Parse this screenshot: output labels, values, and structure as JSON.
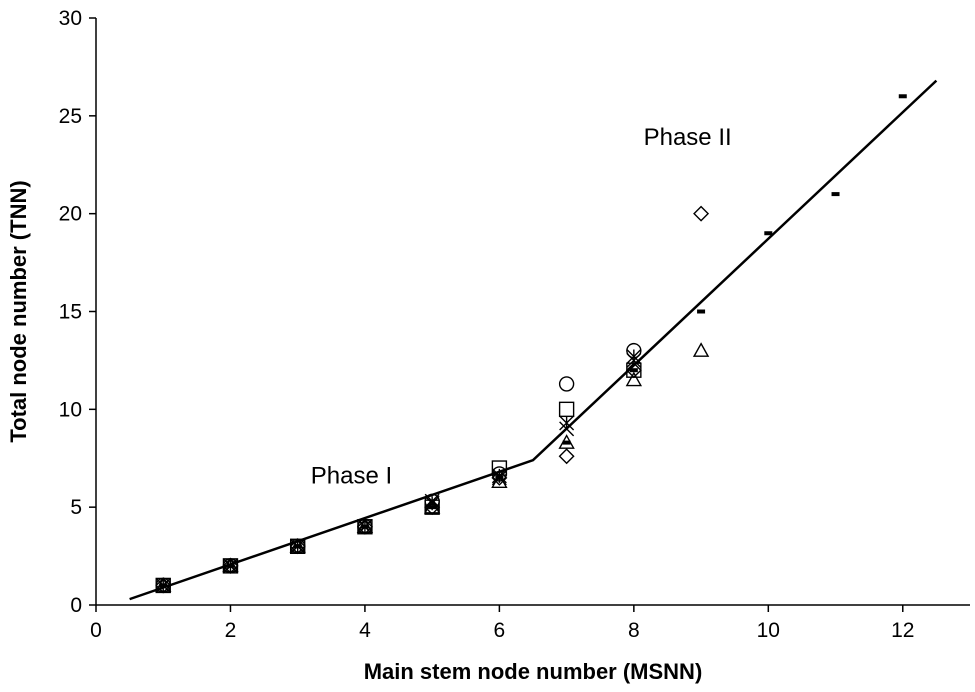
{
  "chart_data": {
    "type": "scatter",
    "title": "",
    "xlabel": "Main stem node number (MSNN)",
    "ylabel": "Total node number (TNN)",
    "xlim": [
      0,
      13
    ],
    "ylim": [
      0,
      30
    ],
    "xticks": [
      0,
      2,
      4,
      6,
      8,
      10,
      12
    ],
    "yticks": [
      0,
      5,
      10,
      15,
      20,
      25,
      30
    ],
    "grid": false,
    "legend": "none",
    "annotations": [
      {
        "text": "Phase I",
        "x": 3.8,
        "y": 6.2
      },
      {
        "text": "Phase II",
        "x": 8.8,
        "y": 23.5
      }
    ],
    "fit_line": {
      "points": [
        [
          0.5,
          0.3
        ],
        [
          6.5,
          7.4
        ],
        [
          12.5,
          26.8
        ]
      ]
    },
    "series": [
      {
        "marker": "circle",
        "points": [
          [
            1,
            1
          ],
          [
            2,
            2
          ],
          [
            3,
            3
          ],
          [
            4,
            4
          ],
          [
            5,
            5.3
          ],
          [
            6,
            6.7
          ],
          [
            7,
            11.3
          ],
          [
            8,
            13
          ]
        ]
      },
      {
        "marker": "square",
        "points": [
          [
            1,
            1
          ],
          [
            2,
            2
          ],
          [
            3,
            3
          ],
          [
            4,
            4
          ],
          [
            5,
            5
          ],
          [
            6,
            7
          ],
          [
            7,
            10
          ],
          [
            8,
            12
          ]
        ]
      },
      {
        "marker": "diamond",
        "points": [
          [
            1,
            1
          ],
          [
            2,
            2
          ],
          [
            3,
            3
          ],
          [
            4,
            4
          ],
          [
            5,
            5
          ],
          [
            6,
            6.5
          ],
          [
            7,
            7.6
          ],
          [
            8,
            12
          ],
          [
            9,
            20
          ]
        ]
      },
      {
        "marker": "triangle",
        "points": [
          [
            1,
            1
          ],
          [
            2,
            2
          ],
          [
            3,
            3
          ],
          [
            4,
            4
          ],
          [
            5,
            5
          ],
          [
            6,
            6.3
          ],
          [
            7,
            8.3
          ],
          [
            8,
            11.5
          ],
          [
            9,
            13
          ]
        ]
      },
      {
        "marker": "x",
        "points": [
          [
            1,
            1
          ],
          [
            2,
            2
          ],
          [
            3,
            3
          ],
          [
            4,
            4
          ],
          [
            5,
            5.3
          ],
          [
            6,
            6.5
          ],
          [
            7,
            9
          ],
          [
            8,
            12.5
          ]
        ]
      },
      {
        "marker": "star",
        "points": [
          [
            1,
            1
          ],
          [
            2,
            2
          ],
          [
            3,
            3
          ],
          [
            4,
            4
          ],
          [
            5,
            5.2
          ],
          [
            6,
            6.6
          ],
          [
            7,
            9.3
          ],
          [
            8,
            12.7
          ]
        ]
      },
      {
        "marker": "dash",
        "points": [
          [
            1,
            1
          ],
          [
            2,
            2
          ],
          [
            3,
            3
          ],
          [
            4,
            4
          ],
          [
            5,
            5
          ],
          [
            6,
            6.5
          ],
          [
            7,
            8.3
          ],
          [
            8,
            12
          ],
          [
            9,
            15
          ],
          [
            10,
            19
          ],
          [
            11,
            21
          ],
          [
            12,
            26
          ]
        ]
      }
    ]
  }
}
